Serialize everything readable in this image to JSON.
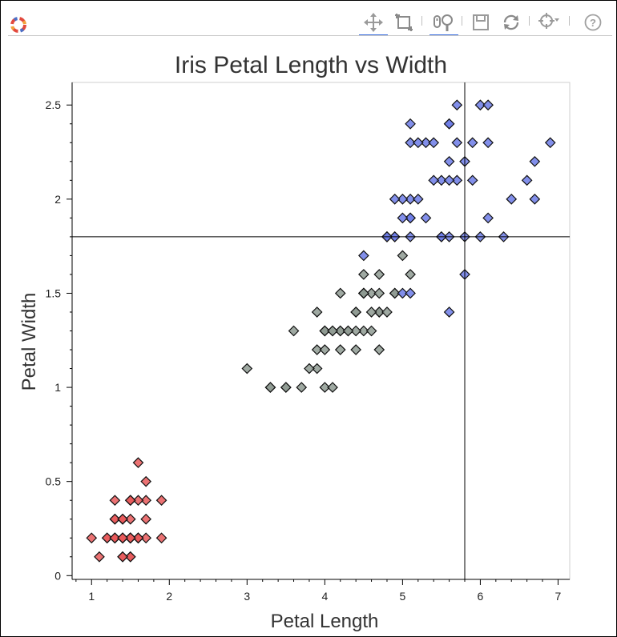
{
  "toolbar": {
    "tools": [
      {
        "name": "pan-icon",
        "active": true
      },
      {
        "name": "box-zoom-icon",
        "active": false
      },
      {
        "name": "wheel-zoom-icon",
        "active": true
      },
      {
        "name": "save-icon",
        "active": false
      },
      {
        "name": "reset-icon",
        "active": false
      },
      {
        "name": "crosshair-icon",
        "active": false
      },
      {
        "name": "help-icon",
        "active": false
      }
    ]
  },
  "chart_data": {
    "type": "scatter",
    "title": "Iris Petal Length vs Width",
    "xlabel": "Petal Length",
    "ylabel": "Petal Width",
    "xlim": [
      0.75,
      7.15
    ],
    "ylim": [
      -0.02,
      2.62
    ],
    "x_ticks": [
      1,
      2,
      3,
      4,
      5,
      6,
      7
    ],
    "y_ticks": [
      0,
      0.5,
      1,
      1.5,
      2,
      2.5
    ],
    "y_tick_labels": [
      "0",
      "0.5",
      "1",
      "1.5",
      "2",
      "2.5"
    ],
    "grid": false,
    "marker": "diamond",
    "crosshair": {
      "x": 5.8,
      "y": 1.8
    },
    "series": [
      {
        "color": "#e8595a",
        "points": [
          [
            1.4,
            0.2
          ],
          [
            1.4,
            0.2
          ],
          [
            1.3,
            0.2
          ],
          [
            1.5,
            0.2
          ],
          [
            1.4,
            0.2
          ],
          [
            1.7,
            0.4
          ],
          [
            1.4,
            0.3
          ],
          [
            1.5,
            0.2
          ],
          [
            1.4,
            0.2
          ],
          [
            1.5,
            0.1
          ],
          [
            1.5,
            0.2
          ],
          [
            1.6,
            0.2
          ],
          [
            1.4,
            0.1
          ],
          [
            1.1,
            0.1
          ],
          [
            1.2,
            0.2
          ],
          [
            1.5,
            0.4
          ],
          [
            1.3,
            0.4
          ],
          [
            1.4,
            0.3
          ],
          [
            1.7,
            0.3
          ],
          [
            1.5,
            0.3
          ],
          [
            1.7,
            0.2
          ],
          [
            1.5,
            0.4
          ],
          [
            1.0,
            0.2
          ],
          [
            1.7,
            0.5
          ],
          [
            1.9,
            0.2
          ],
          [
            1.6,
            0.2
          ],
          [
            1.6,
            0.4
          ],
          [
            1.5,
            0.2
          ],
          [
            1.4,
            0.2
          ],
          [
            1.6,
            0.2
          ],
          [
            1.6,
            0.2
          ],
          [
            1.5,
            0.4
          ],
          [
            1.5,
            0.1
          ],
          [
            1.4,
            0.2
          ],
          [
            1.5,
            0.2
          ],
          [
            1.2,
            0.2
          ],
          [
            1.3,
            0.2
          ],
          [
            1.4,
            0.1
          ],
          [
            1.3,
            0.2
          ],
          [
            1.5,
            0.2
          ],
          [
            1.3,
            0.3
          ],
          [
            1.3,
            0.3
          ],
          [
            1.3,
            0.2
          ],
          [
            1.6,
            0.6
          ],
          [
            1.9,
            0.4
          ],
          [
            1.4,
            0.3
          ],
          [
            1.6,
            0.2
          ],
          [
            1.4,
            0.2
          ],
          [
            1.5,
            0.2
          ],
          [
            1.4,
            0.2
          ]
        ]
      },
      {
        "color": "#8e9a92",
        "points": [
          [
            4.7,
            1.4
          ],
          [
            4.5,
            1.5
          ],
          [
            4.9,
            1.5
          ],
          [
            4.0,
            1.3
          ],
          [
            4.6,
            1.5
          ],
          [
            4.5,
            1.3
          ],
          [
            4.7,
            1.6
          ],
          [
            3.3,
            1.0
          ],
          [
            4.6,
            1.3
          ],
          [
            3.9,
            1.4
          ],
          [
            3.5,
            1.0
          ],
          [
            4.2,
            1.5
          ],
          [
            4.0,
            1.0
          ],
          [
            4.7,
            1.4
          ],
          [
            3.6,
            1.3
          ],
          [
            4.4,
            1.4
          ],
          [
            4.5,
            1.5
          ],
          [
            4.1,
            1.0
          ],
          [
            4.5,
            1.5
          ],
          [
            3.9,
            1.1
          ],
          [
            4.8,
            1.8
          ],
          [
            4.0,
            1.3
          ],
          [
            4.9,
            1.5
          ],
          [
            4.7,
            1.2
          ],
          [
            4.3,
            1.3
          ],
          [
            4.4,
            1.4
          ],
          [
            4.8,
            1.4
          ],
          [
            5.0,
            1.7
          ],
          [
            4.5,
            1.5
          ],
          [
            3.5,
            1.0
          ],
          [
            3.8,
            1.1
          ],
          [
            3.7,
            1.0
          ],
          [
            3.9,
            1.2
          ],
          [
            5.1,
            1.6
          ],
          [
            4.5,
            1.5
          ],
          [
            4.5,
            1.6
          ],
          [
            4.7,
            1.5
          ],
          [
            4.4,
            1.3
          ],
          [
            4.1,
            1.3
          ],
          [
            4.0,
            1.3
          ],
          [
            4.4,
            1.2
          ],
          [
            4.6,
            1.4
          ],
          [
            4.0,
            1.2
          ],
          [
            3.3,
            1.0
          ],
          [
            4.2,
            1.3
          ],
          [
            4.2,
            1.2
          ],
          [
            4.2,
            1.3
          ],
          [
            4.3,
            1.3
          ],
          [
            3.0,
            1.1
          ],
          [
            4.1,
            1.3
          ]
        ]
      },
      {
        "color": "#6c7be6",
        "points": [
          [
            6.0,
            2.5
          ],
          [
            5.1,
            1.9
          ],
          [
            5.9,
            2.1
          ],
          [
            5.6,
            1.8
          ],
          [
            5.8,
            2.2
          ],
          [
            6.6,
            2.1
          ],
          [
            4.5,
            1.7
          ],
          [
            6.3,
            1.8
          ],
          [
            5.8,
            1.8
          ],
          [
            6.1,
            2.5
          ],
          [
            5.1,
            2.0
          ],
          [
            5.3,
            1.9
          ],
          [
            5.5,
            2.1
          ],
          [
            5.0,
            2.0
          ],
          [
            5.1,
            2.4
          ],
          [
            5.3,
            2.3
          ],
          [
            5.5,
            1.8
          ],
          [
            6.7,
            2.2
          ],
          [
            6.9,
            2.3
          ],
          [
            5.0,
            1.5
          ],
          [
            5.7,
            2.3
          ],
          [
            4.9,
            2.0
          ],
          [
            6.7,
            2.0
          ],
          [
            4.9,
            1.8
          ],
          [
            5.7,
            2.1
          ],
          [
            6.0,
            1.8
          ],
          [
            4.8,
            1.8
          ],
          [
            4.9,
            1.8
          ],
          [
            5.6,
            2.1
          ],
          [
            5.8,
            1.6
          ],
          [
            6.1,
            1.9
          ],
          [
            6.4,
            2.0
          ],
          [
            5.6,
            2.2
          ],
          [
            5.1,
            1.5
          ],
          [
            5.6,
            1.4
          ],
          [
            6.1,
            2.3
          ],
          [
            5.6,
            2.4
          ],
          [
            5.5,
            1.8
          ],
          [
            4.8,
            1.8
          ],
          [
            5.4,
            2.1
          ],
          [
            5.6,
            2.4
          ],
          [
            5.1,
            2.3
          ],
          [
            5.1,
            1.9
          ],
          [
            5.9,
            2.3
          ],
          [
            5.7,
            2.5
          ],
          [
            5.2,
            2.3
          ],
          [
            5.0,
            1.9
          ],
          [
            5.2,
            2.0
          ],
          [
            5.4,
            2.3
          ],
          [
            5.1,
            1.8
          ]
        ]
      }
    ]
  }
}
